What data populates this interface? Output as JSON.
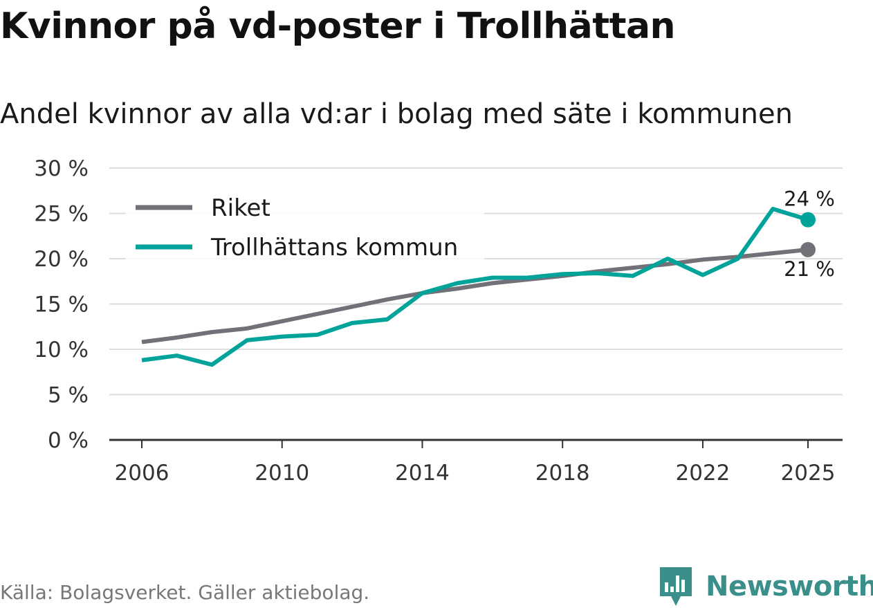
{
  "title": "Kvinnor på vd-poster i Trollhättan",
  "subtitle": "Andel kvinnor av alla vd:ar i bolag med säte i kommunen",
  "source": "Källa: Bolagsverket. Gäller aktiebolag.",
  "brand": "Newsworthy",
  "colors": {
    "riket": "#737178",
    "kommun": "#00a39a",
    "grid": "#dddddd",
    "axis": "#333333"
  },
  "chart_data": {
    "type": "line",
    "title": "Kvinnor på vd-poster i Trollhättan",
    "xlabel": "",
    "ylabel": "",
    "xlim": [
      2006,
      2025
    ],
    "ylim": [
      0,
      30
    ],
    "x_ticks": [
      "2006",
      "2010",
      "2014",
      "2018",
      "2022",
      "2025"
    ],
    "y_ticks": [
      "0 %",
      "5 %",
      "10 %",
      "15 %",
      "20 %",
      "25 %",
      "30 %"
    ],
    "legend_position": "top-left",
    "x": [
      2006,
      2007,
      2008,
      2009,
      2010,
      2011,
      2012,
      2013,
      2014,
      2015,
      2016,
      2017,
      2018,
      2019,
      2020,
      2021,
      2022,
      2023,
      2024,
      2025
    ],
    "series": [
      {
        "name": "Riket",
        "color": "#737178",
        "values": [
          10.8,
          11.3,
          11.9,
          12.3,
          13.1,
          13.9,
          14.7,
          15.5,
          16.2,
          16.7,
          17.3,
          17.7,
          18.1,
          18.6,
          19.0,
          19.4,
          19.9,
          20.2,
          20.6,
          21.0
        ],
        "end_label": "21 %"
      },
      {
        "name": "Trollhättans kommun",
        "color": "#00a39a",
        "values": [
          8.8,
          9.3,
          8.3,
          11.0,
          11.4,
          11.6,
          12.9,
          13.3,
          16.2,
          17.3,
          17.9,
          17.9,
          18.3,
          18.4,
          18.1,
          20.0,
          18.2,
          20.0,
          25.5,
          24.3
        ],
        "end_label": "24 %"
      }
    ]
  }
}
